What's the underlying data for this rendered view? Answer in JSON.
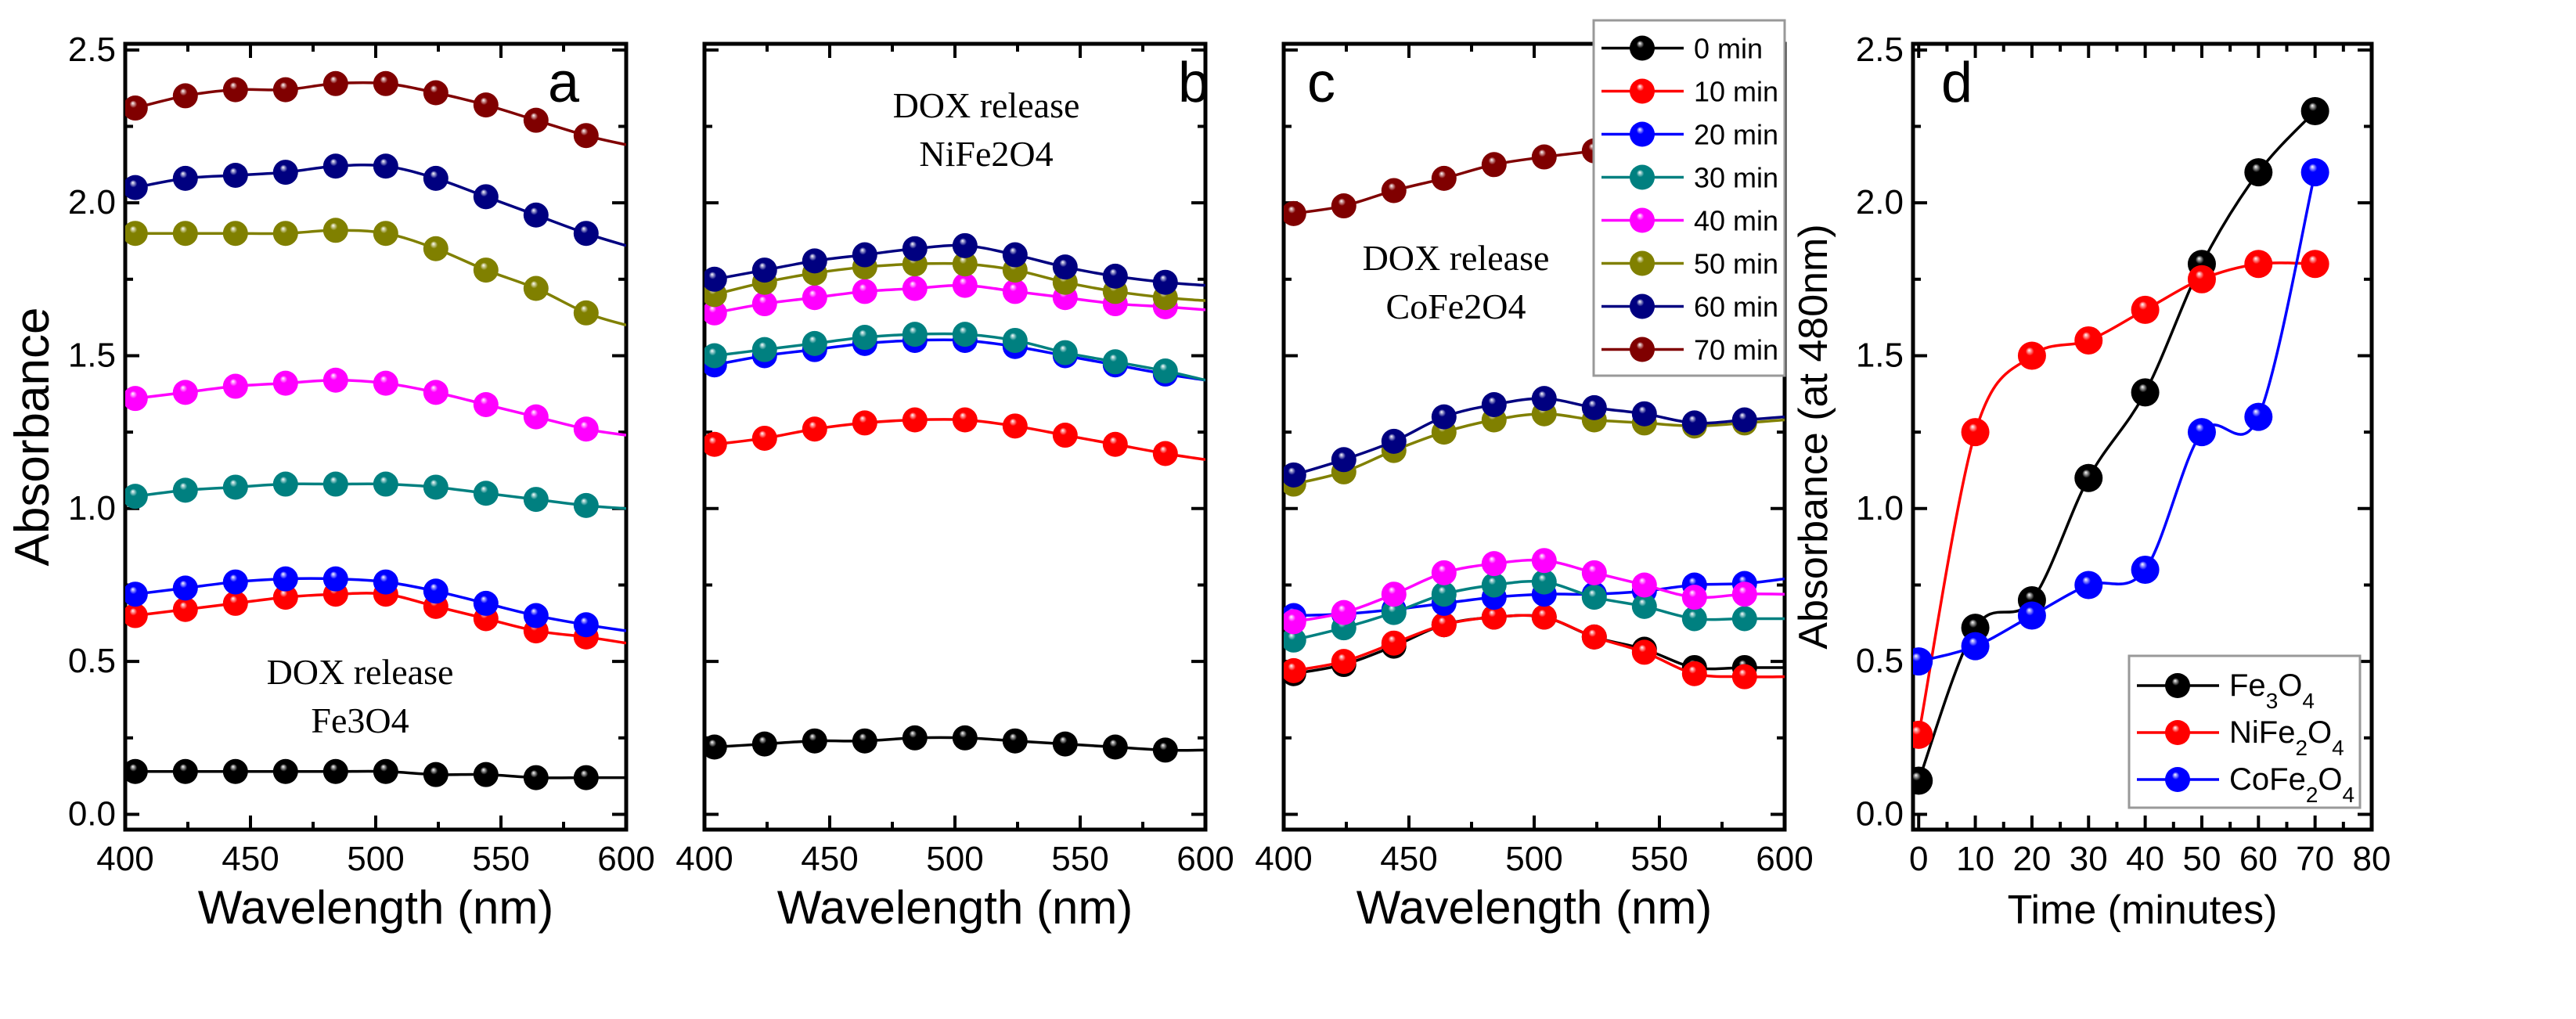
{
  "chart_data": [
    {
      "panel": "a",
      "type": "line",
      "ylabel": "Absorbance",
      "xlabel": "Wavelength (nm)",
      "xlim": [
        400,
        600
      ],
      "ylim": [
        -0.05,
        2.52
      ],
      "xticks": [
        "400",
        "450",
        "500",
        "550",
        "600"
      ],
      "yticks": [
        "0.0",
        "0.5",
        "1.0",
        "1.5",
        "2.0",
        "2.5"
      ],
      "annotation": [
        "DOX release",
        "Fe3O4"
      ],
      "x": [
        404,
        424,
        444,
        464,
        484,
        504,
        524,
        544,
        564,
        584
      ],
      "series": [
        {
          "name": "0 min",
          "color": "#000000",
          "values": [
            0.14,
            0.14,
            0.14,
            0.14,
            0.14,
            0.14,
            0.13,
            0.13,
            0.12,
            0.12
          ],
          "value_at_600": 0.12
        },
        {
          "name": "10 min",
          "color": "#ff0000",
          "values": [
            0.65,
            0.67,
            0.69,
            0.71,
            0.72,
            0.72,
            0.68,
            0.64,
            0.6,
            0.58
          ],
          "value_at_600": 0.56
        },
        {
          "name": "20 min",
          "color": "#0000ff",
          "values": [
            0.72,
            0.74,
            0.76,
            0.77,
            0.77,
            0.76,
            0.73,
            0.69,
            0.65,
            0.62
          ],
          "value_at_600": 0.6
        },
        {
          "name": "30 min",
          "color": "#008080",
          "values": [
            1.04,
            1.06,
            1.07,
            1.08,
            1.08,
            1.08,
            1.07,
            1.05,
            1.03,
            1.01
          ],
          "value_at_600": 1.0
        },
        {
          "name": "40 min",
          "color": "#ff00ff",
          "values": [
            1.36,
            1.38,
            1.4,
            1.41,
            1.42,
            1.41,
            1.38,
            1.34,
            1.3,
            1.26
          ],
          "value_at_600": 1.24
        },
        {
          "name": "50 min",
          "color": "#808000",
          "values": [
            1.9,
            1.9,
            1.9,
            1.9,
            1.91,
            1.9,
            1.85,
            1.78,
            1.72,
            1.64
          ],
          "value_at_600": 1.6
        },
        {
          "name": "60 min",
          "color": "#000080",
          "values": [
            2.05,
            2.08,
            2.09,
            2.1,
            2.12,
            2.12,
            2.08,
            2.02,
            1.96,
            1.9
          ],
          "value_at_600": 1.86
        },
        {
          "name": "70 min",
          "color": "#800000",
          "values": [
            2.31,
            2.35,
            2.37,
            2.37,
            2.39,
            2.39,
            2.36,
            2.32,
            2.27,
            2.22
          ],
          "value_at_600": 2.19
        }
      ]
    },
    {
      "panel": "b",
      "type": "line",
      "xlabel": "Wavelength (nm)",
      "xlim": [
        400,
        600
      ],
      "ylim": [
        -0.05,
        2.52
      ],
      "xticks": [
        "400",
        "450",
        "500",
        "550",
        "600"
      ],
      "annotation": [
        "DOX release",
        "NiFe2O4"
      ],
      "x": [
        404,
        424,
        444,
        464,
        484,
        504,
        524,
        544,
        564,
        584
      ],
      "series": [
        {
          "name": "0 min",
          "color": "#000000",
          "values": [
            0.22,
            0.23,
            0.24,
            0.24,
            0.25,
            0.25,
            0.24,
            0.23,
            0.22,
            0.21
          ],
          "value_at_600": 0.21
        },
        {
          "name": "10 min",
          "color": "#ff0000",
          "values": [
            1.21,
            1.23,
            1.26,
            1.28,
            1.29,
            1.29,
            1.27,
            1.24,
            1.21,
            1.18
          ],
          "value_at_600": 1.16
        },
        {
          "name": "20 min",
          "color": "#0000ff",
          "values": [
            1.47,
            1.5,
            1.52,
            1.54,
            1.55,
            1.55,
            1.53,
            1.5,
            1.47,
            1.44
          ],
          "value_at_600": 1.42
        },
        {
          "name": "30 min",
          "color": "#008080",
          "values": [
            1.5,
            1.52,
            1.54,
            1.56,
            1.57,
            1.57,
            1.55,
            1.51,
            1.48,
            1.45
          ],
          "value_at_600": 1.42
        },
        {
          "name": "40 min",
          "color": "#ff00ff",
          "values": [
            1.64,
            1.67,
            1.69,
            1.71,
            1.72,
            1.73,
            1.71,
            1.69,
            1.67,
            1.66
          ],
          "value_at_600": 1.65
        },
        {
          "name": "50 min",
          "color": "#808000",
          "values": [
            1.7,
            1.74,
            1.77,
            1.79,
            1.8,
            1.8,
            1.78,
            1.74,
            1.71,
            1.69
          ],
          "value_at_600": 1.68
        },
        {
          "name": "60 min",
          "color": "#000080",
          "values": [
            1.75,
            1.78,
            1.81,
            1.83,
            1.85,
            1.86,
            1.83,
            1.79,
            1.76,
            1.74
          ],
          "value_at_600": 1.73
        }
      ]
    },
    {
      "panel": "c",
      "type": "line",
      "xlabel": "Wavelength (nm)",
      "xlim": [
        400,
        600
      ],
      "ylim": [
        -0.05,
        2.52
      ],
      "xticks": [
        "400",
        "450",
        "500",
        "550",
        "600"
      ],
      "annotation": [
        "DOX release",
        "CoFe2O4"
      ],
      "legend_position": "top-right",
      "x": [
        404,
        424,
        444,
        464,
        484,
        504,
        524,
        544,
        564,
        584
      ],
      "series": [
        {
          "name": "0 min",
          "color": "#000000",
          "values": [
            0.46,
            0.49,
            0.55,
            0.62,
            0.645,
            0.645,
            0.58,
            0.54,
            0.48,
            0.48
          ],
          "value_at_600": 0.48
        },
        {
          "name": "10 min",
          "color": "#ff0000",
          "values": [
            0.47,
            0.5,
            0.56,
            0.62,
            0.645,
            0.645,
            0.58,
            0.53,
            0.46,
            0.45
          ],
          "value_at_600": 0.45
        },
        {
          "name": "20 min",
          "color": "#0000ff",
          "values": [
            0.65,
            0.655,
            0.67,
            0.69,
            0.71,
            0.72,
            0.72,
            0.73,
            0.75,
            0.755
          ],
          "value_at_600": 0.77
        },
        {
          "name": "30 min",
          "color": "#008080",
          "values": [
            0.57,
            0.61,
            0.66,
            0.72,
            0.75,
            0.76,
            0.71,
            0.68,
            0.64,
            0.64
          ],
          "value_at_600": 0.64
        },
        {
          "name": "40 min",
          "color": "#ff00ff",
          "values": [
            0.63,
            0.66,
            0.72,
            0.79,
            0.82,
            0.83,
            0.79,
            0.75,
            0.71,
            0.72
          ],
          "value_at_600": 0.72
        },
        {
          "name": "50 min",
          "color": "#808000",
          "values": [
            1.08,
            1.12,
            1.19,
            1.25,
            1.29,
            1.31,
            1.29,
            1.28,
            1.27,
            1.28
          ],
          "value_at_600": 1.29
        },
        {
          "name": "60 min",
          "color": "#000080",
          "values": [
            1.11,
            1.16,
            1.22,
            1.3,
            1.34,
            1.36,
            1.33,
            1.31,
            1.28,
            1.29
          ],
          "value_at_600": 1.3
        },
        {
          "name": "70 min",
          "color": "#800000",
          "values": [
            1.965,
            1.99,
            2.04,
            2.08,
            2.125,
            2.15,
            2.17,
            2.2,
            2.24,
            2.27
          ],
          "value_at_600": 2.3
        }
      ]
    },
    {
      "panel": "d",
      "type": "line",
      "xlabel": "Time (minutes)",
      "ylabel": "Absorbance (at 480nm)",
      "xlim": [
        -1,
        80
      ],
      "ylim": [
        -0.05,
        2.52
      ],
      "xticks": [
        "0",
        "10",
        "20",
        "30",
        "40",
        "50",
        "60",
        "70",
        "80"
      ],
      "yticks": [
        "0.0",
        "0.5",
        "1.0",
        "1.5",
        "2.0",
        "2.5"
      ],
      "legend_position": "bottom-right",
      "x": [
        0,
        10,
        20,
        30,
        40,
        50,
        60,
        70
      ],
      "series": [
        {
          "name": "Fe3O4",
          "color": "#000000",
          "values": [
            0.11,
            0.61,
            0.7,
            1.1,
            1.38,
            1.8,
            2.1,
            2.3
          ]
        },
        {
          "name": "NiFe2O4",
          "color": "#ff0000",
          "values": [
            0.26,
            1.25,
            1.5,
            1.55,
            1.65,
            1.75,
            1.8,
            1.8
          ]
        },
        {
          "name": "CoFe2O4",
          "color": "#0000ff",
          "values": [
            0.5,
            0.55,
            0.65,
            0.75,
            0.8,
            1.25,
            1.3,
            2.1
          ]
        }
      ]
    }
  ]
}
